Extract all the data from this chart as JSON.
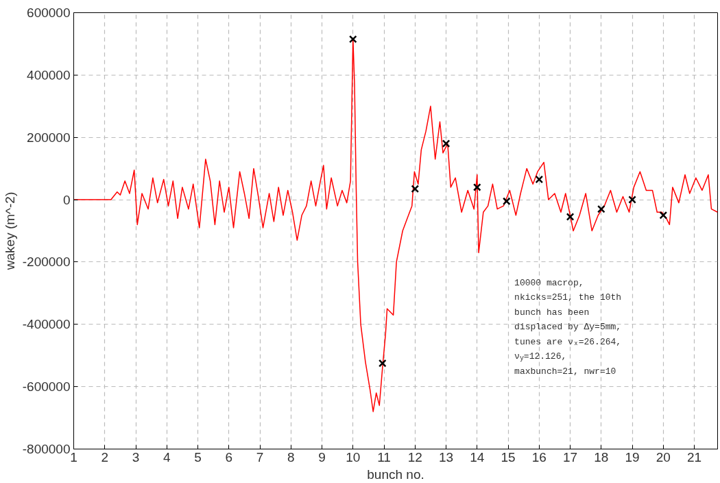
{
  "chart_data": {
    "type": "line",
    "xlabel": "bunch no.",
    "ylabel": "wakey (m^-2)",
    "xlim": [
      1,
      21.75
    ],
    "ylim": [
      -800000,
      600000
    ],
    "xticks": [
      1,
      2,
      3,
      4,
      5,
      6,
      7,
      8,
      9,
      10,
      11,
      12,
      13,
      14,
      15,
      16,
      17,
      18,
      19,
      20,
      21
    ],
    "yticks": [
      -800000,
      -600000,
      -400000,
      -200000,
      0,
      200000,
      400000,
      600000
    ],
    "grid": true,
    "series": [
      {
        "color": "#ff0000",
        "marker": "none",
        "x": [
          1,
          2.2,
          2.4,
          2.5,
          2.65,
          2.8,
          2.95,
          3.05,
          3.2,
          3.4,
          3.55,
          3.7,
          3.9,
          4.05,
          4.2,
          4.35,
          4.5,
          4.7,
          4.85,
          5.05,
          5.25,
          5.4,
          5.55,
          5.7,
          5.85,
          6.0,
          6.15,
          6.35,
          6.5,
          6.65,
          6.8,
          6.95,
          7.1,
          7.3,
          7.45,
          7.6,
          7.75,
          7.9,
          8.05,
          8.2,
          8.35,
          8.5,
          8.65,
          8.8,
          8.95,
          9.05,
          9.15,
          9.3,
          9.5,
          9.65,
          9.8,
          9.92,
          10.0,
          10.05,
          10.1,
          10.15,
          10.25,
          10.4,
          10.55,
          10.65,
          10.75,
          10.85,
          10.95,
          11.05,
          11.1,
          11.3,
          11.4,
          11.6,
          11.75,
          11.9,
          11.98,
          12.1,
          12.2,
          12.35,
          12.5,
          12.65,
          12.8,
          12.9,
          13.05,
          13.15,
          13.3,
          13.5,
          13.7,
          13.9,
          14.0,
          14.05,
          14.2,
          14.35,
          14.5,
          14.65,
          14.85,
          15.05,
          15.25,
          15.4,
          15.6,
          15.8,
          15.95,
          16.15,
          16.3,
          16.5,
          16.7,
          16.85,
          17.0,
          17.1,
          17.3,
          17.5,
          17.7,
          17.9,
          18.1,
          18.3,
          18.5,
          18.7,
          18.9,
          19.05,
          19.25,
          19.45,
          19.65,
          19.8,
          19.95,
          20.1,
          20.2,
          20.3,
          20.5,
          20.7,
          20.85,
          21.05,
          21.25,
          21.45,
          21.55,
          21.75
        ],
        "values": [
          0,
          0,
          25000,
          15000,
          60000,
          20000,
          95000,
          -80000,
          20000,
          -30000,
          70000,
          -10000,
          65000,
          -20000,
          60000,
          -60000,
          40000,
          -30000,
          50000,
          -90000,
          130000,
          60000,
          -80000,
          60000,
          -40000,
          40000,
          -90000,
          90000,
          20000,
          -60000,
          100000,
          10000,
          -90000,
          20000,
          -70000,
          40000,
          -50000,
          30000,
          -40000,
          -130000,
          -50000,
          -20000,
          60000,
          -20000,
          60000,
          110000,
          -30000,
          70000,
          -20000,
          30000,
          -10000,
          60000,
          515000,
          370000,
          50000,
          -200000,
          -400000,
          -520000,
          -610000,
          -680000,
          -620000,
          -660000,
          -540000,
          -430000,
          -350000,
          -370000,
          -200000,
          -100000,
          -60000,
          -20000,
          90000,
          50000,
          160000,
          220000,
          300000,
          130000,
          250000,
          150000,
          180000,
          40000,
          70000,
          -40000,
          30000,
          -30000,
          80000,
          -170000,
          -40000,
          -20000,
          50000,
          -30000,
          -20000,
          30000,
          -50000,
          20000,
          100000,
          50000,
          90000,
          120000,
          0,
          20000,
          -40000,
          20000,
          -50000,
          -100000,
          -50000,
          20000,
          -100000,
          -50000,
          -20000,
          30000,
          -40000,
          10000,
          -40000,
          40000,
          90000,
          30000,
          30000,
          -40000,
          -40000,
          -60000,
          -80000,
          40000,
          -10000,
          80000,
          20000,
          70000,
          30000,
          80000,
          -30000,
          -40000
        ]
      },
      {
        "type": "scatter",
        "color": "#000000",
        "marker": "cross",
        "x": [
          10,
          10.95,
          12,
          13,
          14,
          14.95,
          16,
          17,
          18,
          19,
          20
        ],
        "values": [
          515000,
          -525000,
          35000,
          180000,
          40000,
          -5000,
          65000,
          -55000,
          -30000,
          0,
          -50000
        ]
      }
    ],
    "annotations": [
      "10000 macrop,\nnkicks=251, the 10th\nbunch has been\ndisplaced by Δy=5mm,\ntunes are νₓ=26.264,\nν$_{y}$=12.126,\nmaxbunch=21, nwr=10"
    ]
  }
}
